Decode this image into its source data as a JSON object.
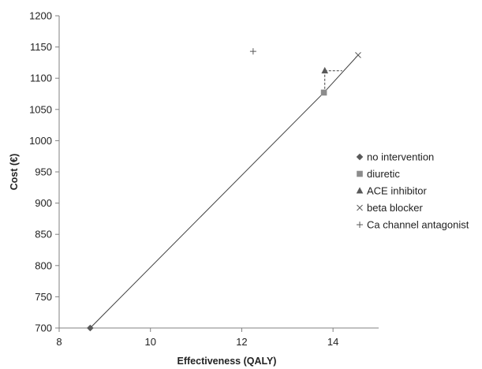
{
  "chart_data": {
    "type": "scatter",
    "xlabel": "Effectiveness (QALY)",
    "ylabel": "Cost (€)",
    "xlim": [
      8,
      15
    ],
    "ylim": [
      700,
      1200
    ],
    "x_ticks": [
      8,
      10,
      12,
      14
    ],
    "y_ticks": [
      700,
      750,
      800,
      850,
      900,
      950,
      1000,
      1050,
      1100,
      1150,
      1200
    ],
    "grid": false,
    "legend_position": "right",
    "series": [
      {
        "name": "no intervention",
        "marker": "diamond",
        "color": "#595959",
        "x": 8.68,
        "y": 700
      },
      {
        "name": "diuretic",
        "marker": "square",
        "color": "#8c8c8c",
        "x": 13.8,
        "y": 1077
      },
      {
        "name": "ACE inhibitor",
        "marker": "triangle",
        "color": "#595959",
        "x": 13.82,
        "y": 1112
      },
      {
        "name": "beta blocker",
        "marker": "x",
        "color": "#595959",
        "x": 14.55,
        "y": 1137
      },
      {
        "name": "Ca channel antagonist",
        "marker": "plus",
        "color": "#595959",
        "x": 12.25,
        "y": 1143
      }
    ],
    "efficiency_frontier": [
      [
        8.68,
        700
      ],
      [
        13.8,
        1077
      ],
      [
        14.55,
        1137
      ]
    ],
    "dominance_guides": [
      [
        [
          13.82,
          1112
        ],
        [
          14.2,
          1112
        ]
      ],
      [
        [
          13.82,
          1112
        ],
        [
          13.82,
          1077
        ]
      ]
    ]
  }
}
